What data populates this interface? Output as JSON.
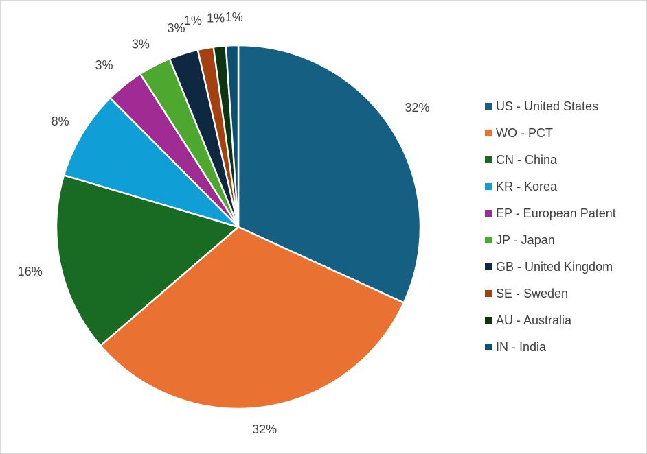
{
  "chart_data": {
    "type": "pie",
    "title": "",
    "legend_position": "right",
    "slices": [
      {
        "label": "US - United States",
        "value": 32,
        "display": "32%",
        "color": "#156082"
      },
      {
        "label": "WO - PCT",
        "value": 32,
        "display": "32%",
        "color": "#E97132"
      },
      {
        "label": "CN - China",
        "value": 16,
        "display": "16%",
        "color": "#196B24"
      },
      {
        "label": "KR - Korea",
        "value": 8,
        "display": "8%",
        "color": "#0F9ED5"
      },
      {
        "label": "EP - European Patent",
        "value": 3.4,
        "display": "3%",
        "color": "#A02B93"
      },
      {
        "label": "JP - Japan",
        "value": 2.9,
        "display": "3%",
        "color": "#4EA72E"
      },
      {
        "label": "GB - United Kingdom",
        "value": 2.6,
        "display": "3%",
        "color": "#0E2841"
      },
      {
        "label": "SE - Sweden",
        "value": 1.4,
        "display": "1%",
        "color": "#A5400F"
      },
      {
        "label": "AU - Australia",
        "value": 1.1,
        "display": "1%",
        "color": "#0D3512"
      },
      {
        "label": "IN - India",
        "value": 1.1,
        "display": "1%",
        "color": "#0B5071"
      }
    ]
  }
}
